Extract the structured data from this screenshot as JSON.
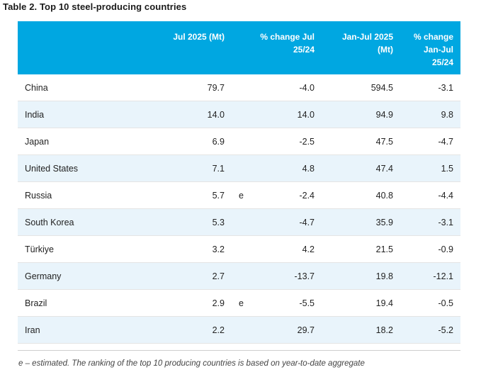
{
  "title": "Table 2. Top 10 steel-producing countries",
  "columns": {
    "jul": "Jul 2025 (Mt)",
    "pct_jul_l1": "% change Jul",
    "pct_jul_l2": "25/24",
    "ytd_l1": "Jan-Jul 2025",
    "ytd_l2": "(Mt)",
    "pct_ytd_l1": "% change",
    "pct_ytd_l2": "Jan-Jul",
    "pct_ytd_l3": "25/24"
  },
  "rows": [
    {
      "country": "China",
      "jul": "79.7",
      "flag": "",
      "pct_jul": "-4.0",
      "ytd": "594.5",
      "pct_ytd": "-3.1"
    },
    {
      "country": "India",
      "jul": "14.0",
      "flag": "",
      "pct_jul": "14.0",
      "ytd": "94.9",
      "pct_ytd": "9.8"
    },
    {
      "country": "Japan",
      "jul": "6.9",
      "flag": "",
      "pct_jul": "-2.5",
      "ytd": "47.5",
      "pct_ytd": "-4.7"
    },
    {
      "country": "United States",
      "jul": "7.1",
      "flag": "",
      "pct_jul": "4.8",
      "ytd": "47.4",
      "pct_ytd": "1.5"
    },
    {
      "country": "Russia",
      "jul": "5.7",
      "flag": "e",
      "pct_jul": "-2.4",
      "ytd": "40.8",
      "pct_ytd": "-4.4"
    },
    {
      "country": "South Korea",
      "jul": "5.3",
      "flag": "",
      "pct_jul": "-4.7",
      "ytd": "35.9",
      "pct_ytd": "-3.1"
    },
    {
      "country": "Türkiye",
      "jul": "3.2",
      "flag": "",
      "pct_jul": "4.2",
      "ytd": "21.5",
      "pct_ytd": "-0.9"
    },
    {
      "country": "Germany",
      "jul": "2.7",
      "flag": "",
      "pct_jul": "-13.7",
      "ytd": "19.8",
      "pct_ytd": "-12.1"
    },
    {
      "country": "Brazil",
      "jul": "2.9",
      "flag": "e",
      "pct_jul": "-5.5",
      "ytd": "19.4",
      "pct_ytd": "-0.5"
    },
    {
      "country": "Iran",
      "jul": "2.2",
      "flag": "",
      "pct_jul": "29.7",
      "ytd": "18.2",
      "pct_ytd": "-5.2"
    }
  ],
  "note": "e – estimated. The ranking of the top 10 producing countries is based on year-to-date aggregate",
  "colors": {
    "header_bg": "#00a7e1",
    "alt_row_bg": "#e9f4fb",
    "header_text": "#ffffff"
  }
}
